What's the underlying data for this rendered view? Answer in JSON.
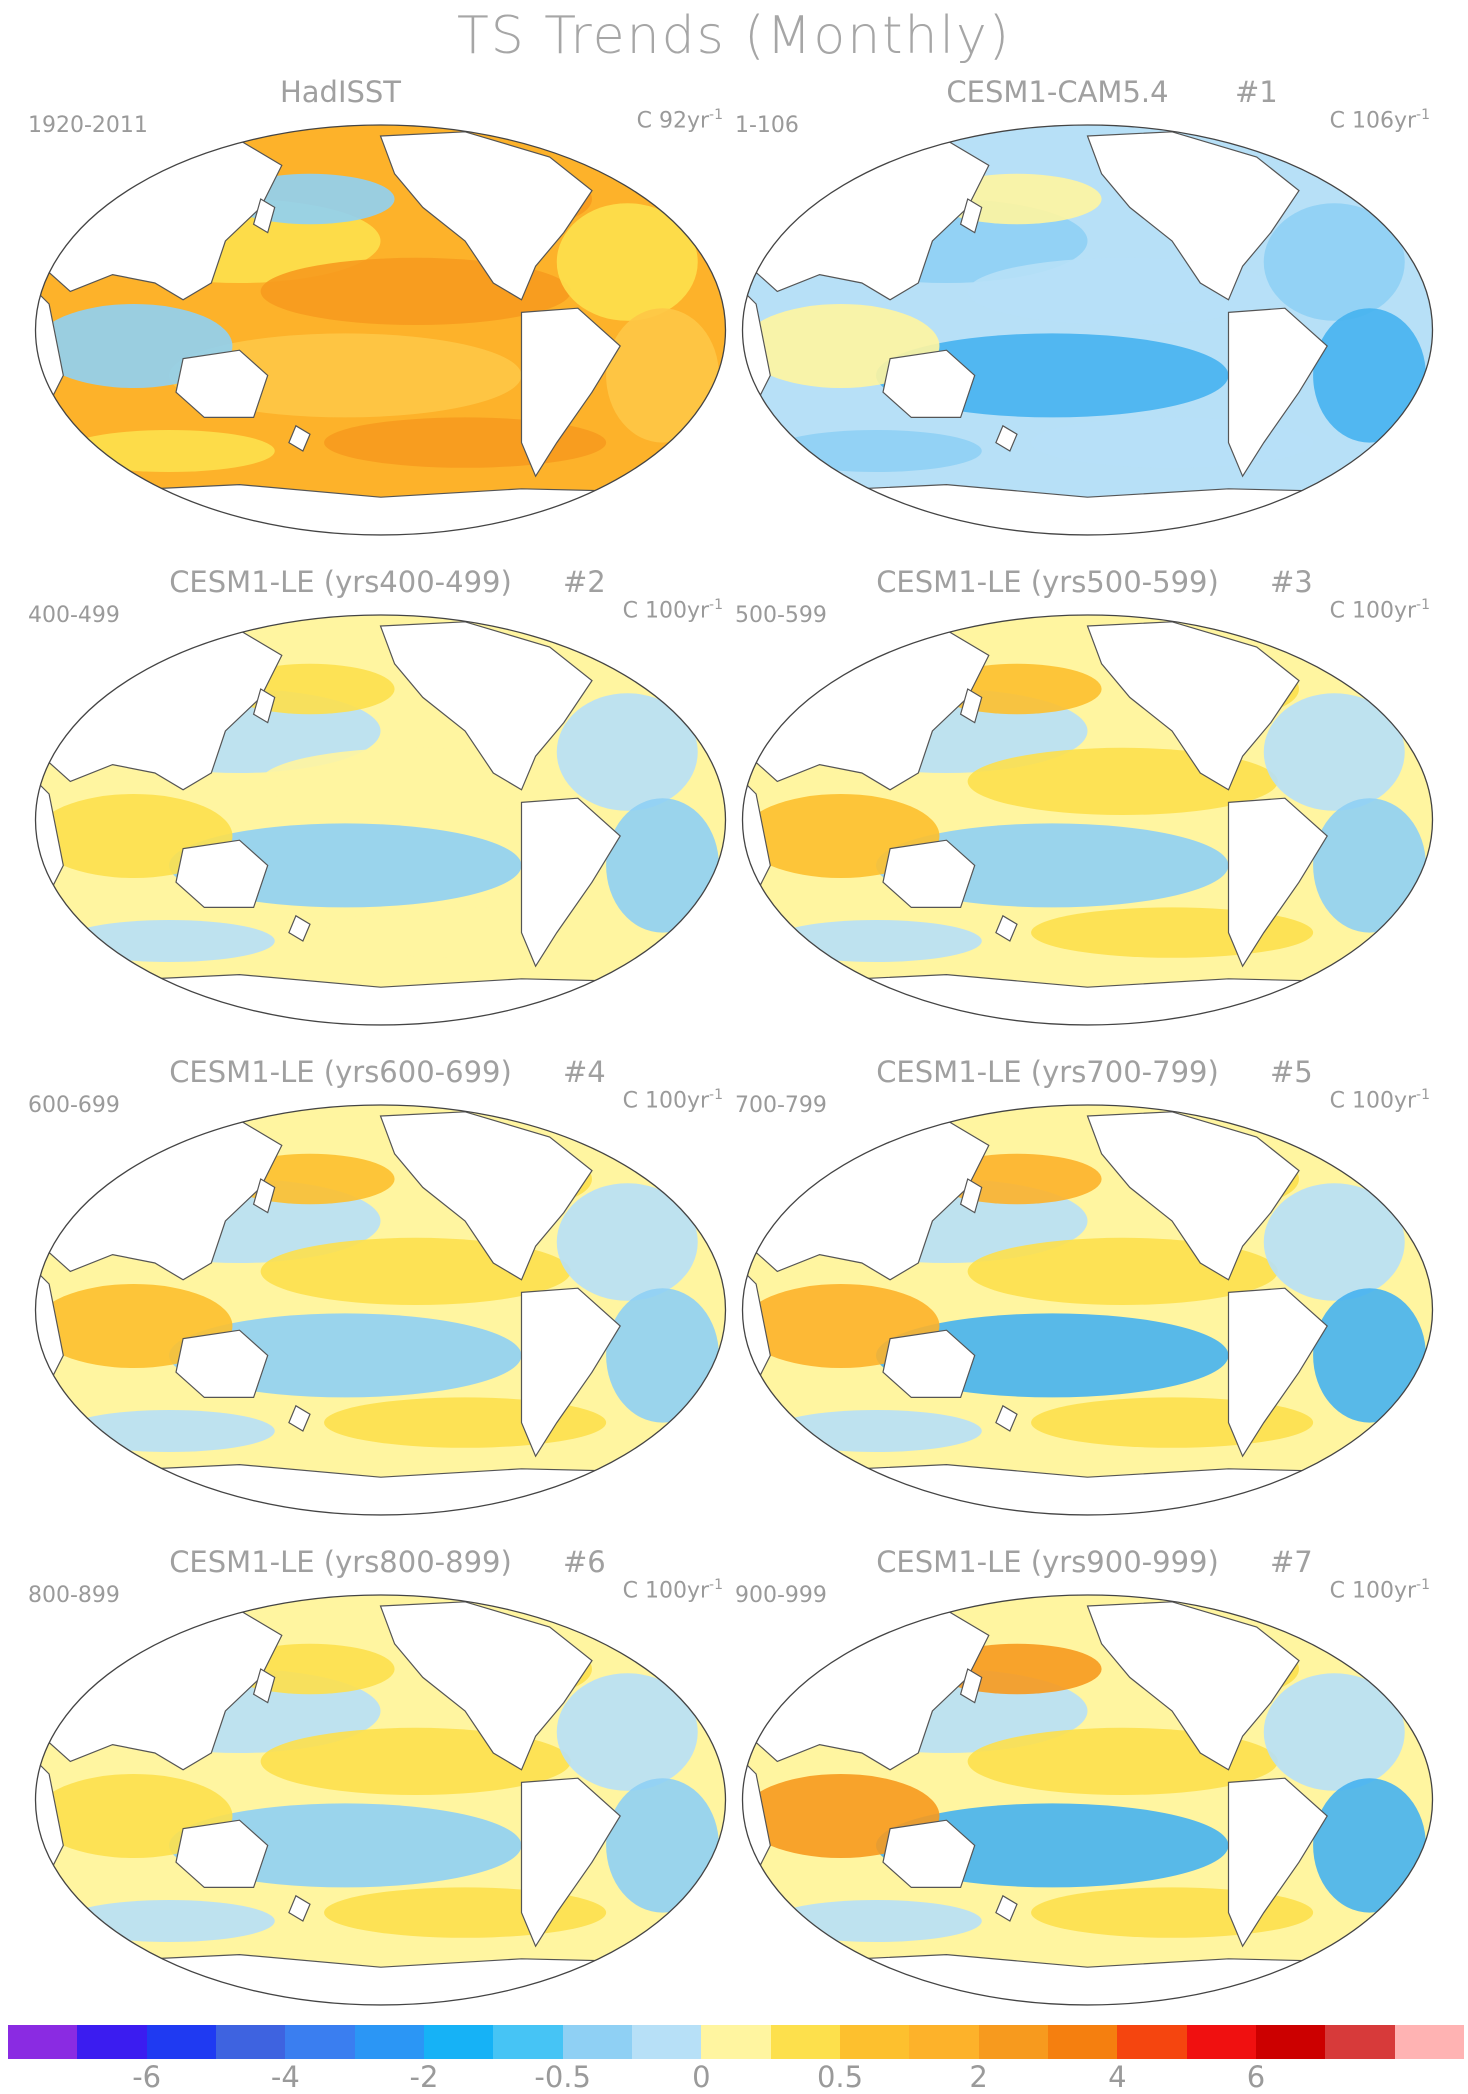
{
  "figure": {
    "title": "TS Trends (Monthly)"
  },
  "panels": [
    {
      "title": "HadISST",
      "number": "",
      "years": "1920-2011",
      "units": "C 92yr",
      "superscript": "-1",
      "palette": [
        "#fdb22a",
        "#fde04c",
        "#f79a1e",
        "#fec646",
        "#8fd0f4"
      ]
    },
    {
      "title": "CESM1-CAM5.4",
      "number": "#1",
      "years": "1-106",
      "units": "C 106yr",
      "superscript": "-1",
      "palette": [
        "#b7e0f7",
        "#8fd0f4",
        "#b7e0f7",
        "#46b3f0",
        "#fff5a0"
      ]
    },
    {
      "title": "CESM1-LE (yrs400-499)",
      "number": "#2",
      "years": "400-499",
      "units": "C 100yr",
      "superscript": "-1",
      "palette": [
        "#fff5a0",
        "#b7e0f7",
        "#fff5a0",
        "#8fd0f4",
        "#fde04c"
      ]
    },
    {
      "title": "CESM1-LE (yrs500-599)",
      "number": "#3",
      "years": "500-599",
      "units": "C 100yr",
      "superscript": "-1",
      "palette": [
        "#fff5a0",
        "#b7e0f7",
        "#fde04c",
        "#8fd0f4",
        "#fdc02e"
      ]
    },
    {
      "title": "CESM1-LE (yrs600-699)",
      "number": "#4",
      "years": "600-699",
      "units": "C 100yr",
      "superscript": "-1",
      "palette": [
        "#fff5a0",
        "#b7e0f7",
        "#fde04c",
        "#8fd0f4",
        "#fdc02e"
      ]
    },
    {
      "title": "CESM1-LE (yrs700-799)",
      "number": "#5",
      "years": "700-799",
      "units": "C 100yr",
      "superscript": "-1",
      "palette": [
        "#fff5a0",
        "#b7e0f7",
        "#fde04c",
        "#46b3f0",
        "#fdb22a"
      ]
    },
    {
      "title": "CESM1-LE (yrs800-899)",
      "number": "#6",
      "years": "800-899",
      "units": "C 100yr",
      "superscript": "-1",
      "palette": [
        "#fff5a0",
        "#b7e0f7",
        "#fde04c",
        "#8fd0f4",
        "#fde04c"
      ]
    },
    {
      "title": "CESM1-LE (yrs900-999)",
      "number": "#7",
      "years": "900-999",
      "units": "C 100yr",
      "superscript": "-1",
      "palette": [
        "#fff5a0",
        "#b7e0f7",
        "#fde04c",
        "#46b3f0",
        "#f79a1e"
      ]
    }
  ],
  "colorbar": {
    "colors": [
      "#8a2be2",
      "#3b1cf0",
      "#1f3af2",
      "#3e63e0",
      "#3a7ef0",
      "#2b96f5",
      "#16b2f6",
      "#46c4f5",
      "#8fd0f4",
      "#b7e0f7",
      "#fff5a0",
      "#fde04c",
      "#fdc02e",
      "#fdb22a",
      "#f79a1e",
      "#f57f0f",
      "#f5450f",
      "#f01010",
      "#cc0000",
      "#d73a3a",
      "#ffb3b3"
    ],
    "labels": [
      "-6",
      "-4",
      "-2",
      "-0.5",
      "0",
      "0.5",
      "2",
      "4",
      "6"
    ]
  }
}
